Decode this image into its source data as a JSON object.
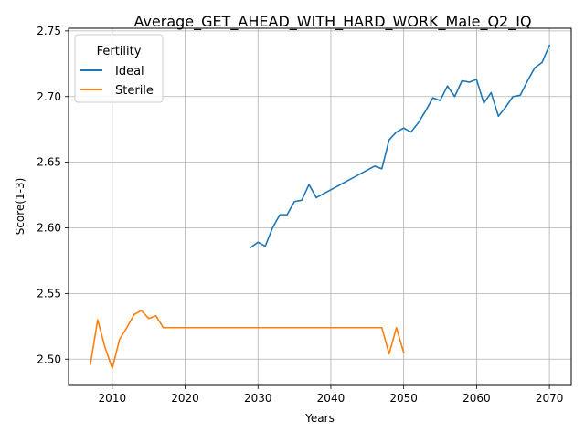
{
  "chart_data": {
    "type": "line",
    "title": "Average_GET_AHEAD_WITH_HARD_WORK_Male_Q2_IQ",
    "xlabel": "Years",
    "ylabel": "Score(1-3)",
    "xlim": [
      2004,
      2073
    ],
    "ylim": [
      2.48,
      2.752
    ],
    "x_ticks": [
      2010,
      2020,
      2030,
      2040,
      2050,
      2060,
      2070
    ],
    "x_tick_labels": [
      "2010",
      "2020",
      "2030",
      "2040",
      "2050",
      "2060",
      "2070"
    ],
    "y_ticks": [
      2.5,
      2.55,
      2.6,
      2.65,
      2.7,
      2.75
    ],
    "y_tick_labels": [
      "2.50",
      "2.55",
      "2.60",
      "2.65",
      "2.70",
      "2.75"
    ],
    "grid": true,
    "legend": {
      "title": "Fertility",
      "position": "top-left"
    },
    "series": [
      {
        "name": "Ideal",
        "color": "#1f77b4",
        "x": [
          2029,
          2030,
          2031,
          2032,
          2033,
          2034,
          2035,
          2036,
          2037,
          2038,
          2046,
          2047,
          2048,
          2049,
          2050,
          2051,
          2052,
          2053,
          2054,
          2055,
          2056,
          2057,
          2058,
          2059,
          2060,
          2061,
          2062,
          2063,
          2064,
          2065,
          2066,
          2067,
          2068,
          2069,
          2070
        ],
        "values": [
          2.585,
          2.589,
          2.586,
          2.6,
          2.61,
          2.61,
          2.62,
          2.621,
          2.633,
          2.623,
          2.647,
          2.645,
          2.667,
          2.673,
          2.676,
          2.673,
          2.68,
          2.689,
          2.699,
          2.697,
          2.708,
          2.7,
          2.712,
          2.711,
          2.713,
          2.695,
          2.703,
          2.685,
          2.692,
          2.7,
          2.701,
          2.712,
          2.722,
          2.726,
          2.739
        ]
      },
      {
        "name": "Sterile",
        "color": "#ff7f0e",
        "x": [
          2007,
          2008,
          2009,
          2010,
          2011,
          2012,
          2013,
          2014,
          2015,
          2016,
          2017,
          2018,
          2047,
          2048,
          2049,
          2050
        ],
        "values": [
          2.496,
          2.53,
          2.509,
          2.493,
          2.515,
          2.524,
          2.534,
          2.537,
          2.531,
          2.533,
          2.524,
          2.524,
          2.524,
          2.504,
          2.524,
          2.505
        ]
      }
    ]
  }
}
